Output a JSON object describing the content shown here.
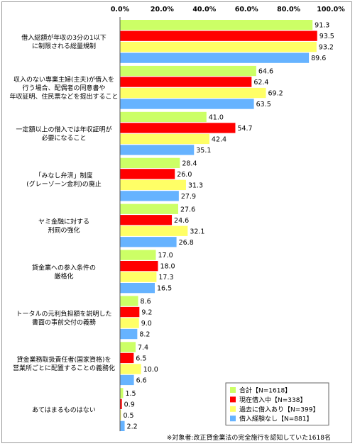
{
  "chart_data": {
    "type": "bar",
    "orientation": "horizontal",
    "xlim": [
      0,
      100
    ],
    "ticks": [
      "0.0%",
      "20.0%",
      "40.0%",
      "60.0%",
      "80.0%",
      "100.0%"
    ],
    "categories": [
      [
        "借入総額が年収の3分の1以下",
        "に制限される総量規制"
      ],
      [
        "収入のない専業主婦(主夫)が借入を",
        "行う場合、配偶者の同意書や",
        "年収証明、住民票などを提出すること"
      ],
      [
        "一定額以上の借入では年収証明が",
        "必要になること"
      ],
      [
        "「みなし弁済」制度",
        "(グレーゾーン金利)の廃止"
      ],
      [
        "ヤミ金融に対する",
        "刑罰の強化"
      ],
      [
        "貸金業への参入条件の",
        "厳格化"
      ],
      [
        "トータルの元利負担額を説明した",
        "書面の事前交付の義務"
      ],
      [
        "貸金業務取扱責任者(国家資格)を",
        "営業所ごとに配置することの義務化"
      ],
      [
        "あてはまるものはない"
      ]
    ],
    "series": [
      {
        "name": "合計【N=1618】",
        "color": "#ccff66",
        "values": [
          91.3,
          64.6,
          41.0,
          28.4,
          27.6,
          17.0,
          8.6,
          7.4,
          1.5
        ]
      },
      {
        "name": "現在借入中【N=338】",
        "color": "#ff0000",
        "values": [
          93.5,
          62.4,
          54.7,
          26.0,
          24.6,
          18.0,
          9.2,
          6.5,
          0.9
        ]
      },
      {
        "name": "過去に借入あり【N=399】",
        "color": "#ffff66",
        "values": [
          93.2,
          69.2,
          42.4,
          31.3,
          32.1,
          17.3,
          9.0,
          10.0,
          0.5
        ]
      },
      {
        "name": "借入経験なし【N=881】",
        "color": "#66b3ff",
        "values": [
          89.6,
          63.5,
          35.1,
          27.9,
          26.8,
          16.5,
          8.2,
          6.6,
          2.2
        ]
      }
    ],
    "legend_position": "bottom-right",
    "grid": false,
    "footnote": "※対象者:改正貸金業法の完全施行を認知していた1618名"
  }
}
